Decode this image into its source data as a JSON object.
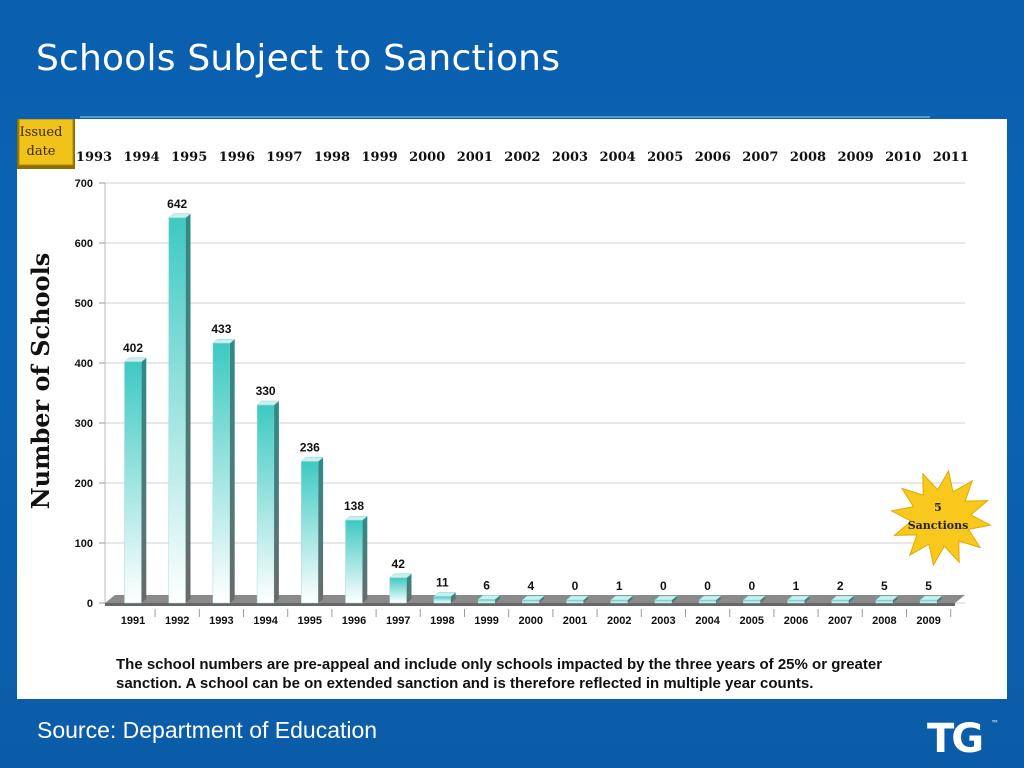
{
  "slide": {
    "title": "Schools Subject to Sanctions",
    "source": "Source: Department of Education",
    "footnote": "The school numbers are pre-appeal and include only schools impacted by the three years of 25% or greater sanction.  A school can be on extended sanction and is therefore reflected in multiple year counts.",
    "logo_text": "TG",
    "logo_tm": "™"
  },
  "colors": {
    "background": "#0a5fae",
    "bar_top": "#3ec9c2",
    "bar_bottom": "#ffffff",
    "bar_side": "#2c8c88",
    "floor": "#777777",
    "issued_box": "#f1c21a",
    "starburst": "#f8c81c"
  },
  "chart_data": {
    "type": "bar",
    "title": "",
    "ylabel": "Number of Schools",
    "xlabel": "",
    "categories": [
      "1991",
      "1992",
      "1993",
      "1994",
      "1995",
      "1996",
      "1997",
      "1998",
      "1999",
      "2000",
      "2001",
      "2002",
      "2003",
      "2004",
      "2005",
      "2006",
      "2007",
      "2008",
      "2009"
    ],
    "values": [
      402,
      642,
      433,
      330,
      236,
      138,
      42,
      11,
      6,
      4,
      0,
      1,
      0,
      0,
      0,
      1,
      2,
      5,
      5
    ],
    "data_labels": [
      "402",
      "642",
      "433",
      "330",
      "236",
      "138",
      "42",
      "11",
      "6",
      "4",
      "0",
      "1",
      "0",
      "0",
      "0",
      "1",
      "2",
      "5",
      "5"
    ],
    "ylim": [
      0,
      700
    ],
    "yticks": [
      0,
      100,
      200,
      300,
      400,
      500,
      600,
      700
    ],
    "grid": true,
    "legend": "none",
    "secondary_axis": {
      "label": "Issued date",
      "label_lines": [
        "Issued",
        "date"
      ],
      "ticks": [
        "1993",
        "1994",
        "1995",
        "1996",
        "1997",
        "1998",
        "1999",
        "2000",
        "2001",
        "2002",
        "2003",
        "2004",
        "2005",
        "2006",
        "2007",
        "2008",
        "2009",
        "2010",
        "2011"
      ]
    },
    "annotation": {
      "lines": [
        "5",
        "Sanctions"
      ],
      "shape": "starburst"
    }
  }
}
